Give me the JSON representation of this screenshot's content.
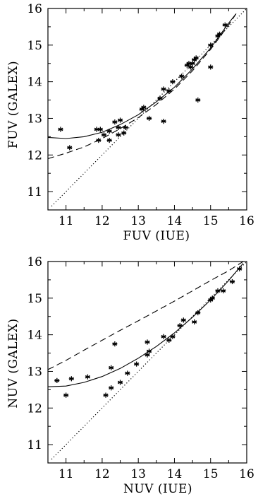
{
  "chart_data": [
    {
      "type": "scatter",
      "xlabel": "FUV (IUE)",
      "ylabel": "FUV (GALEX)",
      "xlim": [
        10.5,
        16
      ],
      "ylim": [
        10.5,
        16
      ],
      "xticks": [
        11,
        12,
        13,
        14,
        15,
        16
      ],
      "yticks": [
        11,
        12,
        13,
        14,
        15,
        16
      ],
      "xtick_labels": [
        "11",
        "12",
        "13",
        "14",
        "15",
        "16"
      ],
      "ytick_labels": [
        "11",
        "12",
        "13",
        "14",
        "15",
        "16"
      ],
      "marker": "asterisk",
      "points": [
        [
          10.85,
          12.7
        ],
        [
          11.1,
          12.2
        ],
        [
          11.85,
          12.7
        ],
        [
          11.95,
          12.7
        ],
        [
          11.9,
          12.4
        ],
        [
          12.05,
          12.55
        ],
        [
          12.2,
          12.4
        ],
        [
          12.2,
          12.65
        ],
        [
          12.35,
          12.9
        ],
        [
          12.45,
          12.75
        ],
        [
          12.45,
          12.55
        ],
        [
          12.5,
          12.95
        ],
        [
          12.6,
          12.6
        ],
        [
          12.65,
          12.75
        ],
        [
          13.1,
          13.25
        ],
        [
          13.15,
          13.3
        ],
        [
          13.3,
          13.0
        ],
        [
          13.6,
          13.55
        ],
        [
          13.7,
          12.92
        ],
        [
          13.7,
          13.8
        ],
        [
          13.85,
          13.75
        ],
        [
          13.95,
          14.0
        ],
        [
          14.2,
          14.15
        ],
        [
          14.35,
          14.45
        ],
        [
          14.4,
          14.5
        ],
        [
          14.45,
          14.4
        ],
        [
          14.5,
          14.5
        ],
        [
          14.55,
          14.6
        ],
        [
          14.6,
          14.65
        ],
        [
          14.65,
          13.5
        ],
        [
          15.0,
          15.0
        ],
        [
          15.0,
          14.4
        ],
        [
          15.2,
          15.25
        ],
        [
          15.25,
          15.3
        ],
        [
          15.4,
          15.55
        ]
      ],
      "curves": [
        {
          "style": "solid",
          "points": [
            [
              10.5,
              12.48
            ],
            [
              11,
              12.45
            ],
            [
              11.5,
              12.5
            ],
            [
              12,
              12.62
            ],
            [
              12.5,
              12.83
            ],
            [
              13,
              13.1
            ],
            [
              13.5,
              13.45
            ],
            [
              14,
              13.85
            ],
            [
              14.5,
              14.35
            ],
            [
              15,
              14.92
            ],
            [
              15.5,
              15.6
            ],
            [
              15.7,
              15.85
            ]
          ]
        },
        {
          "style": "dashed",
          "points": [
            [
              10.5,
              11.9
            ],
            [
              11,
              12.05
            ],
            [
              11.5,
              12.22
            ],
            [
              12,
              12.45
            ],
            [
              12.5,
              12.72
            ],
            [
              13,
              13.02
            ],
            [
              13.5,
              13.38
            ],
            [
              14,
              13.8
            ],
            [
              14.5,
              14.3
            ],
            [
              15,
              14.88
            ],
            [
              15.5,
              15.55
            ],
            [
              15.75,
              15.92
            ]
          ]
        },
        {
          "style": "dotted",
          "points": [
            [
              10.6,
              10.6
            ],
            [
              16,
              16
            ]
          ]
        }
      ]
    },
    {
      "type": "scatter",
      "xlabel": "NUV (IUE)",
      "ylabel": "NUV (GALEX)",
      "xlim": [
        10.5,
        16
      ],
      "ylim": [
        10.5,
        16
      ],
      "xticks": [
        11,
        12,
        13,
        14,
        15,
        16
      ],
      "yticks": [
        11,
        12,
        13,
        14,
        15,
        16
      ],
      "xtick_labels": [
        "11",
        "12",
        "13",
        "14",
        "15",
        "16"
      ],
      "ytick_labels": [
        "11",
        "12",
        "13",
        "14",
        "15",
        "16"
      ],
      "marker": "asterisk",
      "points": [
        [
          10.75,
          12.75
        ],
        [
          11.0,
          12.35
        ],
        [
          11.15,
          12.8
        ],
        [
          11.6,
          12.85
        ],
        [
          12.1,
          12.35
        ],
        [
          12.25,
          12.55
        ],
        [
          12.25,
          13.1
        ],
        [
          12.35,
          13.75
        ],
        [
          12.5,
          12.7
        ],
        [
          12.7,
          12.95
        ],
        [
          12.95,
          13.2
        ],
        [
          13.25,
          13.45
        ],
        [
          13.25,
          13.8
        ],
        [
          13.3,
          13.55
        ],
        [
          13.7,
          13.95
        ],
        [
          13.85,
          13.85
        ],
        [
          13.95,
          13.95
        ],
        [
          14.15,
          14.25
        ],
        [
          14.25,
          14.4
        ],
        [
          14.55,
          14.35
        ],
        [
          14.65,
          14.6
        ],
        [
          15.0,
          14.95
        ],
        [
          15.05,
          15.0
        ],
        [
          15.2,
          15.2
        ],
        [
          15.35,
          15.2
        ],
        [
          15.6,
          15.45
        ],
        [
          15.8,
          15.8
        ]
      ],
      "curves": [
        {
          "style": "solid",
          "points": [
            [
              10.5,
              12.58
            ],
            [
              11,
              12.6
            ],
            [
              11.5,
              12.7
            ],
            [
              12,
              12.86
            ],
            [
              12.5,
              13.08
            ],
            [
              13,
              13.36
            ],
            [
              13.5,
              13.68
            ],
            [
              14,
              14.05
            ],
            [
              14.5,
              14.48
            ],
            [
              15,
              14.95
            ],
            [
              15.5,
              15.48
            ],
            [
              15.9,
              15.95
            ]
          ]
        },
        {
          "style": "dashed",
          "points": [
            [
              10.5,
              13.05
            ],
            [
              11,
              13.3
            ],
            [
              11.5,
              13.58
            ],
            [
              12,
              13.85
            ],
            [
              12.5,
              14.12
            ],
            [
              13,
              14.38
            ],
            [
              13.5,
              14.65
            ],
            [
              14,
              14.92
            ],
            [
              14.5,
              15.2
            ],
            [
              15,
              15.48
            ],
            [
              15.5,
              15.75
            ],
            [
              15.9,
              16.0
            ]
          ]
        },
        {
          "style": "dotted",
          "points": [
            [
              10.6,
              10.6
            ],
            [
              16,
              16
            ]
          ]
        }
      ]
    }
  ]
}
